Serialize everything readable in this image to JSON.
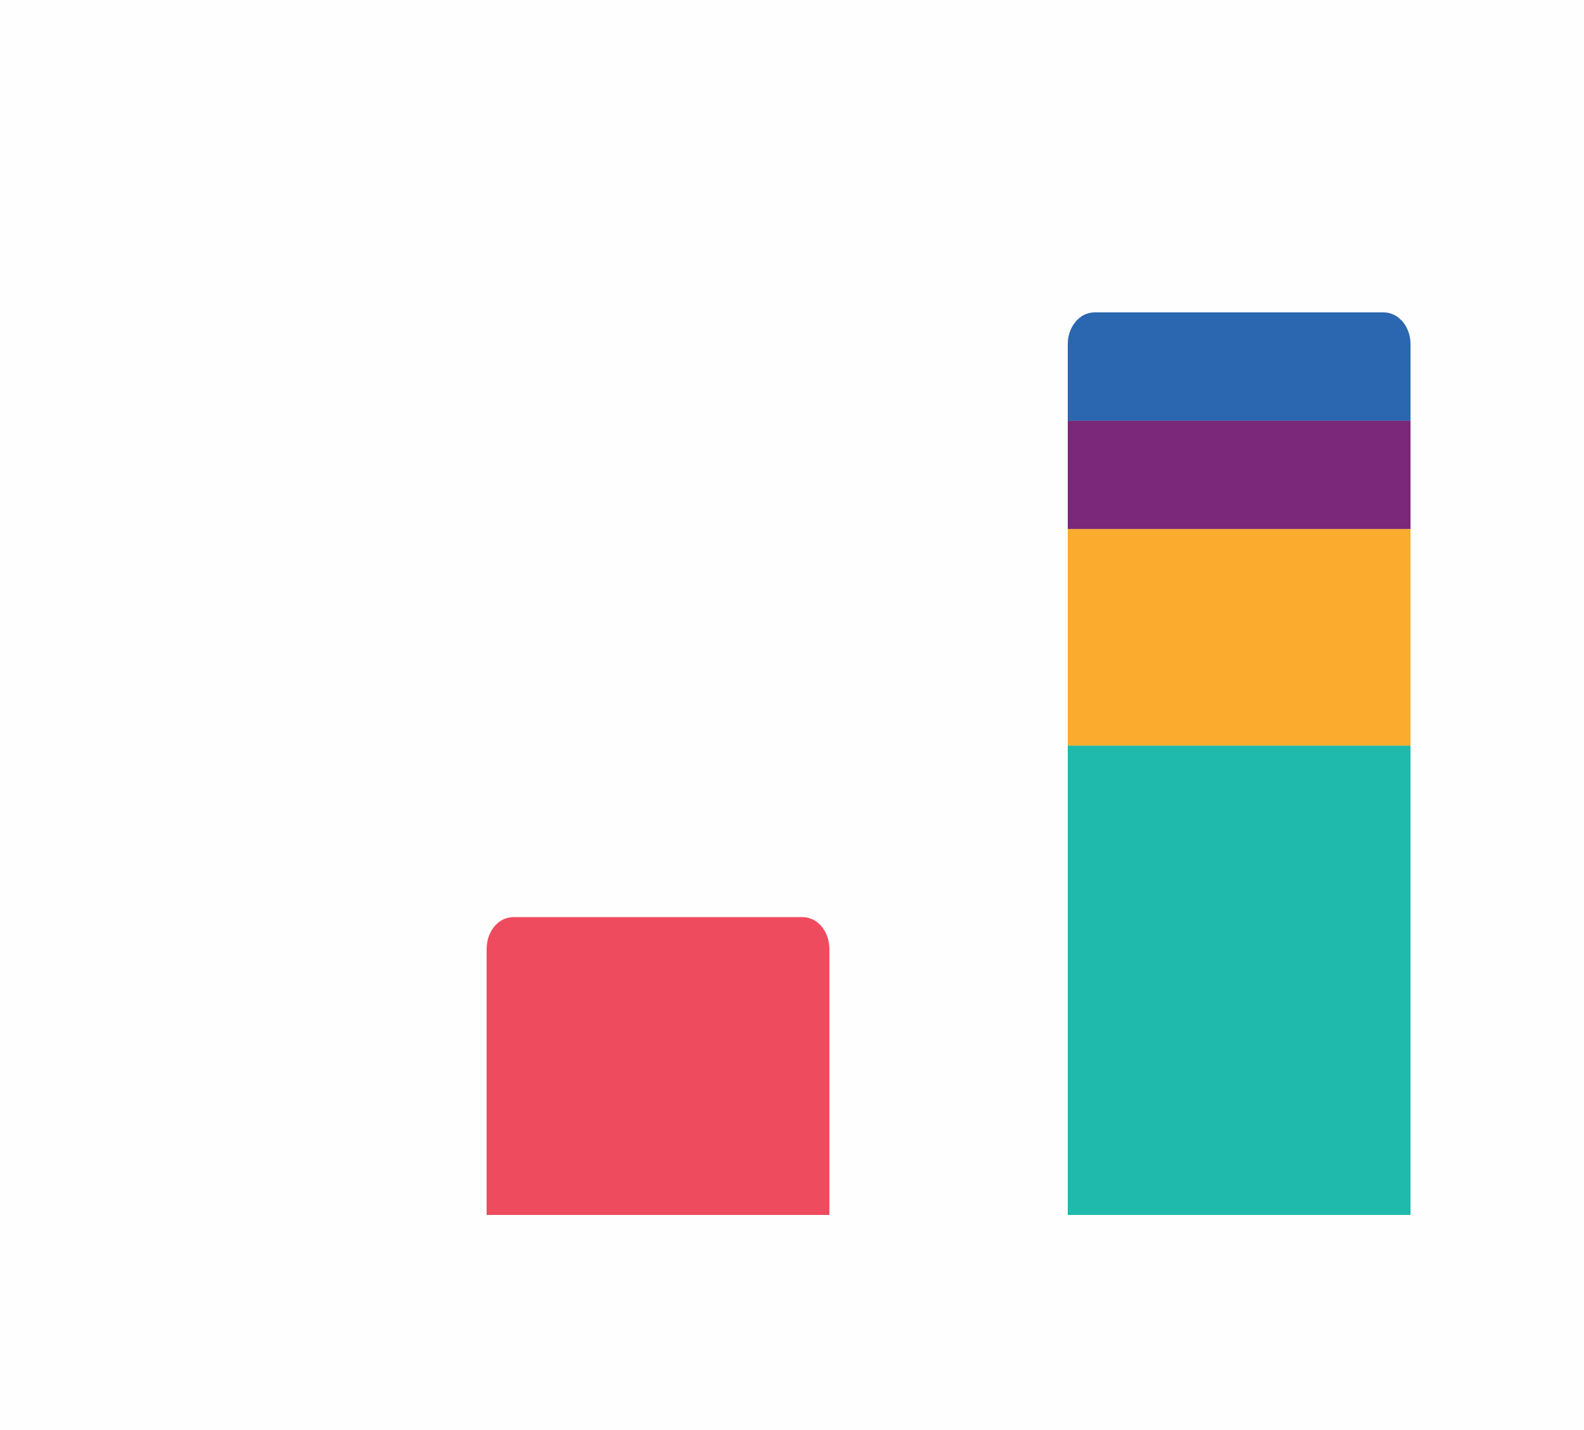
{
  "chart_data": {
    "type": "bar",
    "stacked": true,
    "title": "",
    "xlabel": "",
    "ylabel": "",
    "categories": [
      "",
      ""
    ],
    "ylim": [
      0,
      100
    ],
    "grid": false,
    "legend": "none",
    "series": [
      {
        "color": "#EF4B5F",
        "values": [
          33,
          0
        ],
        "rounded_top": true
      },
      {
        "color": "#20BAAD",
        "values": [
          0,
          52
        ]
      },
      {
        "color": "#FBAC2F",
        "values": [
          0,
          24
        ]
      },
      {
        "color": "#7B287A",
        "values": [
          0,
          12
        ]
      },
      {
        "color": "#2B67B0",
        "values": [
          0,
          12
        ],
        "rounded_top": true
      }
    ]
  }
}
